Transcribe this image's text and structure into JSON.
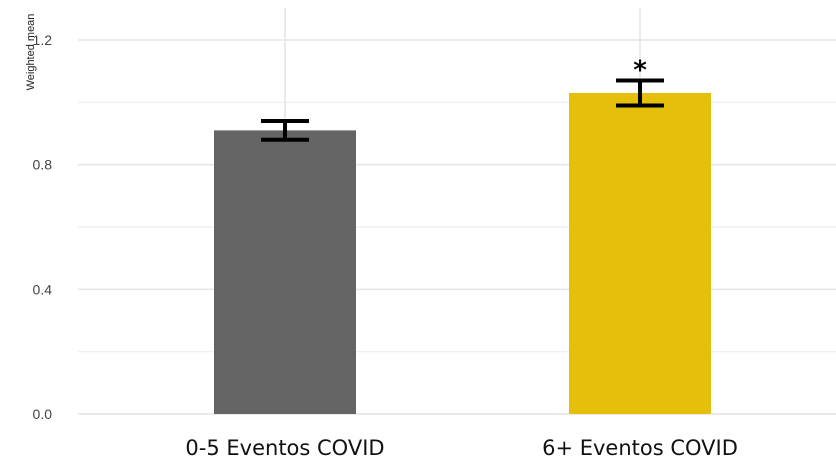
{
  "chart_data": {
    "type": "bar",
    "ylabel": "Weighted mean",
    "xlabel": "",
    "ylim": [
      0,
      1.25
    ],
    "yticks": [
      0.0,
      0.4,
      0.8,
      1.2
    ],
    "ytick_labels": [
      "0.0",
      "0.4",
      "0.8",
      "1.2"
    ],
    "grid": true,
    "legend": "none",
    "categories": [
      "0-5 Eventos COVID",
      "6+ Eventos COVID"
    ],
    "values": [
      0.91,
      1.03
    ],
    "error_low": [
      0.88,
      0.99
    ],
    "error_high": [
      0.94,
      1.07
    ],
    "annotations": [
      "",
      "*"
    ],
    "colors": [
      "#646464",
      "#E6BF0A"
    ]
  }
}
